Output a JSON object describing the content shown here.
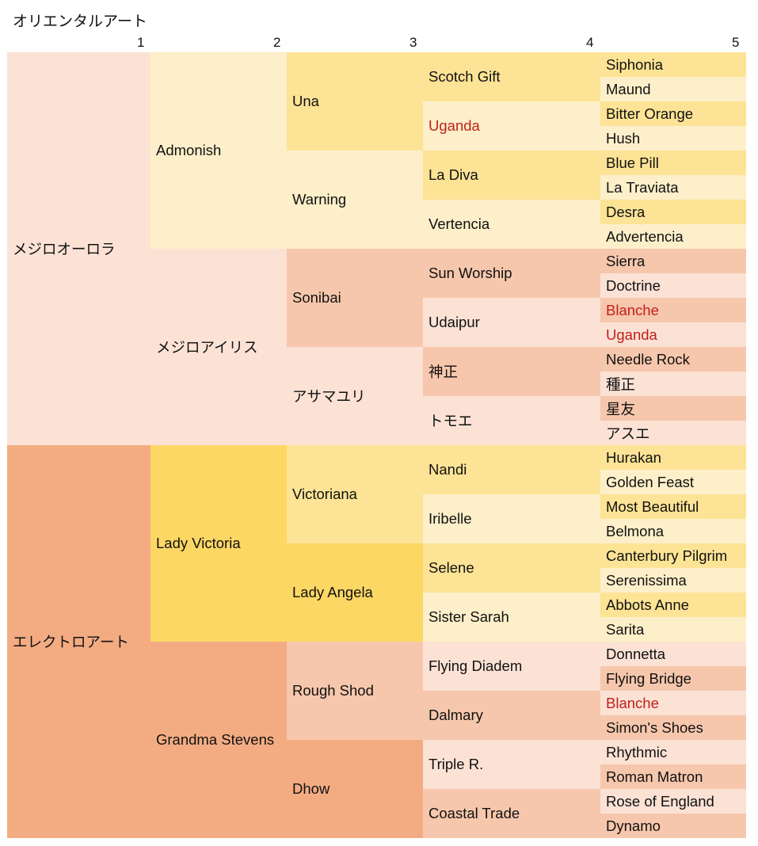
{
  "title": "オリエンタルアート",
  "generations": [
    "1",
    "2",
    "3",
    "4",
    "5"
  ],
  "pedigree": [
    {
      "name": "メジロオーロラ",
      "dup": false,
      "parents": [
        {
          "name": "Admonish",
          "dup": false,
          "parents": [
            {
              "name": "Una",
              "dup": false,
              "parents": [
                {
                  "name": "Scotch Gift",
                  "dup": false,
                  "parents": [
                    {
                      "name": "Siphonia",
                      "dup": false
                    },
                    {
                      "name": "Maund",
                      "dup": false
                    }
                  ]
                },
                {
                  "name": "Uganda",
                  "dup": true,
                  "parents": [
                    {
                      "name": "Bitter Orange",
                      "dup": false
                    },
                    {
                      "name": "Hush",
                      "dup": false
                    }
                  ]
                }
              ]
            },
            {
              "name": "Warning",
              "dup": false,
              "parents": [
                {
                  "name": "La Diva",
                  "dup": false,
                  "parents": [
                    {
                      "name": "Blue Pill",
                      "dup": false
                    },
                    {
                      "name": "La Traviata",
                      "dup": false
                    }
                  ]
                },
                {
                  "name": "Vertencia",
                  "dup": false,
                  "parents": [
                    {
                      "name": "Desra",
                      "dup": false
                    },
                    {
                      "name": "Advertencia",
                      "dup": false
                    }
                  ]
                }
              ]
            }
          ]
        },
        {
          "name": "メジロアイリス",
          "dup": false,
          "parents": [
            {
              "name": "Sonibai",
              "dup": false,
              "parents": [
                {
                  "name": "Sun Worship",
                  "dup": false,
                  "parents": [
                    {
                      "name": "Sierra",
                      "dup": false
                    },
                    {
                      "name": "Doctrine",
                      "dup": false
                    }
                  ]
                },
                {
                  "name": "Udaipur",
                  "dup": false,
                  "parents": [
                    {
                      "name": "Blanche",
                      "dup": true
                    },
                    {
                      "name": "Uganda",
                      "dup": true
                    }
                  ]
                }
              ]
            },
            {
              "name": "アサマユリ",
              "dup": false,
              "parents": [
                {
                  "name": "神正",
                  "dup": false,
                  "parents": [
                    {
                      "name": "Needle Rock",
                      "dup": false
                    },
                    {
                      "name": "種正",
                      "dup": false
                    }
                  ]
                },
                {
                  "name": "トモエ",
                  "dup": false,
                  "parents": [
                    {
                      "name": "星友",
                      "dup": false
                    },
                    {
                      "name": "アスエ",
                      "dup": false
                    }
                  ]
                }
              ]
            }
          ]
        }
      ]
    },
    {
      "name": "エレクトロアート",
      "dup": false,
      "parents": [
        {
          "name": "Lady Victoria",
          "dup": false,
          "parents": [
            {
              "name": "Victoriana",
              "dup": false,
              "parents": [
                {
                  "name": "Nandi",
                  "dup": false,
                  "parents": [
                    {
                      "name": "Hurakan",
                      "dup": false
                    },
                    {
                      "name": "Golden Feast",
                      "dup": false
                    }
                  ]
                },
                {
                  "name": "Iribelle",
                  "dup": false,
                  "parents": [
                    {
                      "name": "Most Beautiful",
                      "dup": false
                    },
                    {
                      "name": "Belmona",
                      "dup": false
                    }
                  ]
                }
              ]
            },
            {
              "name": "Lady Angela",
              "dup": false,
              "parents": [
                {
                  "name": "Selene",
                  "dup": false,
                  "parents": [
                    {
                      "name": "Canterbury Pilgrim",
                      "dup": false
                    },
                    {
                      "name": "Serenissima",
                      "dup": false
                    }
                  ]
                },
                {
                  "name": "Sister Sarah",
                  "dup": false,
                  "parents": [
                    {
                      "name": "Abbots Anne",
                      "dup": false
                    },
                    {
                      "name": "Sarita",
                      "dup": false
                    }
                  ]
                }
              ]
            }
          ]
        },
        {
          "name": "Grandma Stevens",
          "dup": false,
          "parents": [
            {
              "name": "Rough Shod",
              "dup": false,
              "parents": [
                {
                  "name": "Flying Diadem",
                  "dup": false,
                  "parents": [
                    {
                      "name": "Donnetta",
                      "dup": false
                    },
                    {
                      "name": "Flying Bridge",
                      "dup": false
                    }
                  ]
                },
                {
                  "name": "Dalmary",
                  "dup": false,
                  "parents": [
                    {
                      "name": "Blanche",
                      "dup": true
                    },
                    {
                      "name": "Simon's Shoes",
                      "dup": false
                    }
                  ]
                }
              ]
            },
            {
              "name": "Dhow",
              "dup": false,
              "parents": [
                {
                  "name": "Triple R.",
                  "dup": false,
                  "parents": [
                    {
                      "name": "Rhythmic",
                      "dup": false
                    },
                    {
                      "name": "Roman Matron",
                      "dup": false
                    }
                  ]
                },
                {
                  "name": "Coastal Trade",
                  "dup": false,
                  "parents": [
                    {
                      "name": "Rose of England",
                      "dup": false
                    },
                    {
                      "name": "Dynamo",
                      "dup": false
                    }
                  ]
                }
              ]
            }
          ]
        }
      ]
    }
  ],
  "colors": {
    "top_light": "#fdefc9",
    "top_mid": "#fde395",
    "top_strong": "#fdd764",
    "bottom_light": "#fbe2d5",
    "bottom_mid": "#f6c7ac",
    "bottom_strong": "#f3ac82",
    "duplicate_text": "#c0201a"
  }
}
